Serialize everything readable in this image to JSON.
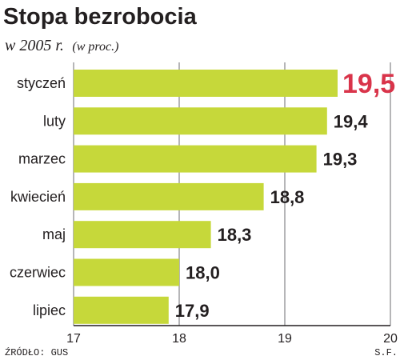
{
  "chart_data": {
    "type": "bar",
    "orientation": "horizontal",
    "title": "Stopa bezrobocia",
    "subtitle_main": "w 2005 r.",
    "subtitle_unit": "(w proc.)",
    "categories": [
      "styczeń",
      "luty",
      "marzec",
      "kwiecień",
      "maj",
      "czerwiec",
      "lipiec"
    ],
    "values": [
      19.5,
      19.4,
      19.3,
      18.8,
      18.3,
      18.0,
      17.9
    ],
    "value_labels": [
      "19,5",
      "19,4",
      "19,3",
      "18,8",
      "18,3",
      "18,0",
      "17,9"
    ],
    "xlim": [
      17,
      20
    ],
    "xticks": [
      17,
      18,
      19,
      20
    ],
    "xtick_labels": [
      "17",
      "18",
      "19",
      "20"
    ],
    "grid": true,
    "highlight_index": 0,
    "colors": {
      "bar": "#c6d83a",
      "highlight_text": "#d9344a",
      "text": "#231f20",
      "grid": "#6d6e71"
    }
  },
  "footer": {
    "source": "ŹRÓDŁO: GUS",
    "author": "S.F."
  }
}
